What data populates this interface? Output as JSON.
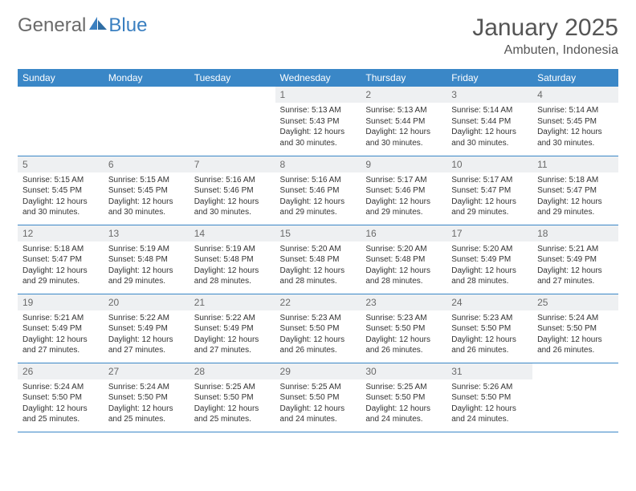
{
  "logo": {
    "text1": "General",
    "text2": "Blue"
  },
  "title": "January 2025",
  "location": "Ambuten, Indonesia",
  "colors": {
    "header_bg": "#3a87c7",
    "header_fg": "#ffffff",
    "daynum_bg": "#eef0f2",
    "border": "#3a87c7",
    "logo_gray": "#6a6a6a",
    "logo_blue": "#3a7fc0"
  },
  "weekdays": [
    "Sunday",
    "Monday",
    "Tuesday",
    "Wednesday",
    "Thursday",
    "Friday",
    "Saturday"
  ],
  "weeks": [
    [
      {
        "day": "",
        "sunrise": "",
        "sunset": "",
        "daylight": ""
      },
      {
        "day": "",
        "sunrise": "",
        "sunset": "",
        "daylight": ""
      },
      {
        "day": "",
        "sunrise": "",
        "sunset": "",
        "daylight": ""
      },
      {
        "day": "1",
        "sunrise": "Sunrise: 5:13 AM",
        "sunset": "Sunset: 5:43 PM",
        "daylight": "Daylight: 12 hours and 30 minutes."
      },
      {
        "day": "2",
        "sunrise": "Sunrise: 5:13 AM",
        "sunset": "Sunset: 5:44 PM",
        "daylight": "Daylight: 12 hours and 30 minutes."
      },
      {
        "day": "3",
        "sunrise": "Sunrise: 5:14 AM",
        "sunset": "Sunset: 5:44 PM",
        "daylight": "Daylight: 12 hours and 30 minutes."
      },
      {
        "day": "4",
        "sunrise": "Sunrise: 5:14 AM",
        "sunset": "Sunset: 5:45 PM",
        "daylight": "Daylight: 12 hours and 30 minutes."
      }
    ],
    [
      {
        "day": "5",
        "sunrise": "Sunrise: 5:15 AM",
        "sunset": "Sunset: 5:45 PM",
        "daylight": "Daylight: 12 hours and 30 minutes."
      },
      {
        "day": "6",
        "sunrise": "Sunrise: 5:15 AM",
        "sunset": "Sunset: 5:45 PM",
        "daylight": "Daylight: 12 hours and 30 minutes."
      },
      {
        "day": "7",
        "sunrise": "Sunrise: 5:16 AM",
        "sunset": "Sunset: 5:46 PM",
        "daylight": "Daylight: 12 hours and 30 minutes."
      },
      {
        "day": "8",
        "sunrise": "Sunrise: 5:16 AM",
        "sunset": "Sunset: 5:46 PM",
        "daylight": "Daylight: 12 hours and 29 minutes."
      },
      {
        "day": "9",
        "sunrise": "Sunrise: 5:17 AM",
        "sunset": "Sunset: 5:46 PM",
        "daylight": "Daylight: 12 hours and 29 minutes."
      },
      {
        "day": "10",
        "sunrise": "Sunrise: 5:17 AM",
        "sunset": "Sunset: 5:47 PM",
        "daylight": "Daylight: 12 hours and 29 minutes."
      },
      {
        "day": "11",
        "sunrise": "Sunrise: 5:18 AM",
        "sunset": "Sunset: 5:47 PM",
        "daylight": "Daylight: 12 hours and 29 minutes."
      }
    ],
    [
      {
        "day": "12",
        "sunrise": "Sunrise: 5:18 AM",
        "sunset": "Sunset: 5:47 PM",
        "daylight": "Daylight: 12 hours and 29 minutes."
      },
      {
        "day": "13",
        "sunrise": "Sunrise: 5:19 AM",
        "sunset": "Sunset: 5:48 PM",
        "daylight": "Daylight: 12 hours and 29 minutes."
      },
      {
        "day": "14",
        "sunrise": "Sunrise: 5:19 AM",
        "sunset": "Sunset: 5:48 PM",
        "daylight": "Daylight: 12 hours and 28 minutes."
      },
      {
        "day": "15",
        "sunrise": "Sunrise: 5:20 AM",
        "sunset": "Sunset: 5:48 PM",
        "daylight": "Daylight: 12 hours and 28 minutes."
      },
      {
        "day": "16",
        "sunrise": "Sunrise: 5:20 AM",
        "sunset": "Sunset: 5:48 PM",
        "daylight": "Daylight: 12 hours and 28 minutes."
      },
      {
        "day": "17",
        "sunrise": "Sunrise: 5:20 AM",
        "sunset": "Sunset: 5:49 PM",
        "daylight": "Daylight: 12 hours and 28 minutes."
      },
      {
        "day": "18",
        "sunrise": "Sunrise: 5:21 AM",
        "sunset": "Sunset: 5:49 PM",
        "daylight": "Daylight: 12 hours and 27 minutes."
      }
    ],
    [
      {
        "day": "19",
        "sunrise": "Sunrise: 5:21 AM",
        "sunset": "Sunset: 5:49 PM",
        "daylight": "Daylight: 12 hours and 27 minutes."
      },
      {
        "day": "20",
        "sunrise": "Sunrise: 5:22 AM",
        "sunset": "Sunset: 5:49 PM",
        "daylight": "Daylight: 12 hours and 27 minutes."
      },
      {
        "day": "21",
        "sunrise": "Sunrise: 5:22 AM",
        "sunset": "Sunset: 5:49 PM",
        "daylight": "Daylight: 12 hours and 27 minutes."
      },
      {
        "day": "22",
        "sunrise": "Sunrise: 5:23 AM",
        "sunset": "Sunset: 5:50 PM",
        "daylight": "Daylight: 12 hours and 26 minutes."
      },
      {
        "day": "23",
        "sunrise": "Sunrise: 5:23 AM",
        "sunset": "Sunset: 5:50 PM",
        "daylight": "Daylight: 12 hours and 26 minutes."
      },
      {
        "day": "24",
        "sunrise": "Sunrise: 5:23 AM",
        "sunset": "Sunset: 5:50 PM",
        "daylight": "Daylight: 12 hours and 26 minutes."
      },
      {
        "day": "25",
        "sunrise": "Sunrise: 5:24 AM",
        "sunset": "Sunset: 5:50 PM",
        "daylight": "Daylight: 12 hours and 26 minutes."
      }
    ],
    [
      {
        "day": "26",
        "sunrise": "Sunrise: 5:24 AM",
        "sunset": "Sunset: 5:50 PM",
        "daylight": "Daylight: 12 hours and 25 minutes."
      },
      {
        "day": "27",
        "sunrise": "Sunrise: 5:24 AM",
        "sunset": "Sunset: 5:50 PM",
        "daylight": "Daylight: 12 hours and 25 minutes."
      },
      {
        "day": "28",
        "sunrise": "Sunrise: 5:25 AM",
        "sunset": "Sunset: 5:50 PM",
        "daylight": "Daylight: 12 hours and 25 minutes."
      },
      {
        "day": "29",
        "sunrise": "Sunrise: 5:25 AM",
        "sunset": "Sunset: 5:50 PM",
        "daylight": "Daylight: 12 hours and 24 minutes."
      },
      {
        "day": "30",
        "sunrise": "Sunrise: 5:25 AM",
        "sunset": "Sunset: 5:50 PM",
        "daylight": "Daylight: 12 hours and 24 minutes."
      },
      {
        "day": "31",
        "sunrise": "Sunrise: 5:26 AM",
        "sunset": "Sunset: 5:50 PM",
        "daylight": "Daylight: 12 hours and 24 minutes."
      },
      {
        "day": "",
        "sunrise": "",
        "sunset": "",
        "daylight": ""
      }
    ]
  ]
}
